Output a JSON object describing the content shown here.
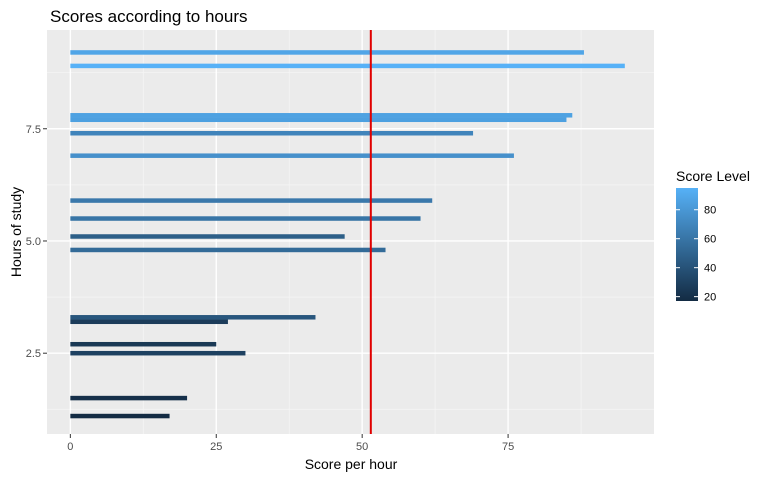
{
  "chart_data": {
    "type": "bar",
    "orientation": "horizontal",
    "title": "Scores according to hours",
    "xlabel": "Score per hour",
    "ylabel": "Hours of study",
    "xlim": [
      -4,
      100
    ],
    "ylim": [
      0.7,
      9.7
    ],
    "x_ticks": [
      0,
      25,
      50,
      75
    ],
    "x_tick_labels": [
      "0",
      "25",
      "50",
      "75"
    ],
    "y_ticks": [
      2.5,
      5.0,
      7.5
    ],
    "y_tick_labels": [
      "2.5",
      "5.0",
      "7.5"
    ],
    "grid": true,
    "bars": [
      {
        "hours": 1.1,
        "score": 17
      },
      {
        "hours": 1.5,
        "score": 20
      },
      {
        "hours": 2.5,
        "score": 30
      },
      {
        "hours": 2.7,
        "score": 25
      },
      {
        "hours": 3.2,
        "score": 27
      },
      {
        "hours": 3.3,
        "score": 42
      },
      {
        "hours": 4.8,
        "score": 54
      },
      {
        "hours": 5.1,
        "score": 47
      },
      {
        "hours": 5.5,
        "score": 60
      },
      {
        "hours": 5.9,
        "score": 62
      },
      {
        "hours": 6.9,
        "score": 76
      },
      {
        "hours": 7.4,
        "score": 69
      },
      {
        "hours": 7.7,
        "score": 85
      },
      {
        "hours": 7.8,
        "score": 86
      },
      {
        "hours": 8.9,
        "score": 95
      },
      {
        "hours": 9.2,
        "score": 88
      }
    ],
    "reference_line": {
      "x": 51.48,
      "color": "#e00000"
    },
    "color_scale": {
      "title": "Score Level",
      "low_color": "#132b43",
      "high_color": "#56b1f7",
      "domain": [
        17,
        95
      ],
      "ticks": [
        20,
        40,
        60,
        80
      ],
      "tick_labels": [
        "20",
        "40",
        "60",
        "80"
      ]
    },
    "legend_position": "right"
  }
}
